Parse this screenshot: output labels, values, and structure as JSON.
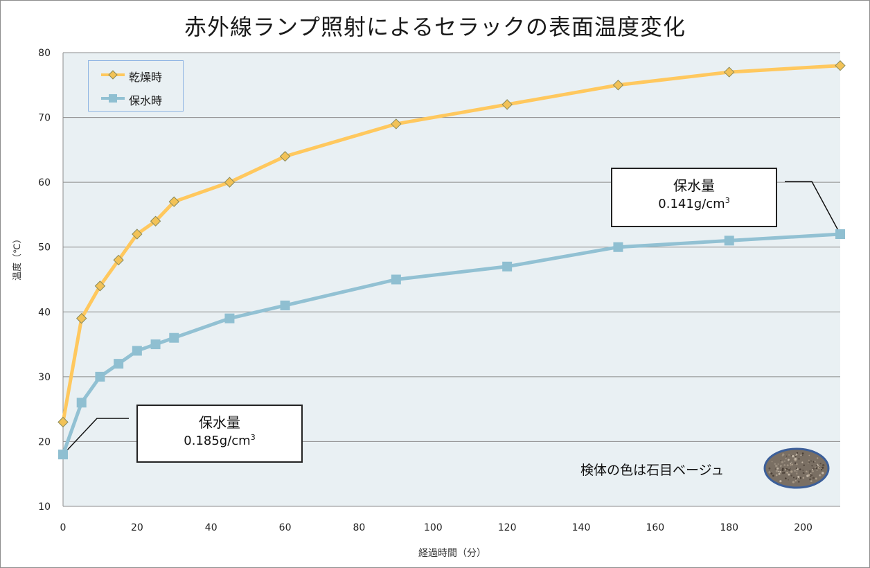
{
  "chart_data": {
    "type": "line",
    "title": "赤外線ランプ照射によるセラックの表面温度変化",
    "xlabel": "経過時間（分）",
    "ylabel": "温度（℃）",
    "xlim": [
      0,
      210
    ],
    "ylim": [
      10,
      80
    ],
    "x_ticks": [
      0,
      20,
      40,
      60,
      80,
      100,
      120,
      140,
      160,
      180,
      200
    ],
    "y_ticks": [
      10,
      20,
      30,
      40,
      50,
      60,
      70,
      80
    ],
    "grid": "horizontal",
    "legend_position": "top-left",
    "series": [
      {
        "name": "乾燥時",
        "color": "#ffc85e",
        "marker": "diamond",
        "marker_fill": "#f2c257",
        "x": [
          0,
          5,
          10,
          15,
          20,
          25,
          30,
          45,
          60,
          90,
          120,
          150,
          180,
          210
        ],
        "values": [
          23,
          39,
          44,
          48,
          52,
          54,
          57,
          60,
          64,
          69,
          72,
          75,
          77,
          78
        ]
      },
      {
        "name": "保水時",
        "color": "#92c1d3",
        "marker": "square",
        "marker_fill": "#8fbfd1",
        "x": [
          0,
          5,
          10,
          15,
          20,
          25,
          30,
          45,
          60,
          90,
          120,
          150,
          180,
          210
        ],
        "values": [
          18,
          26,
          30,
          32,
          34,
          35,
          36,
          39,
          41,
          45,
          47,
          50,
          51,
          52
        ]
      }
    ],
    "annotations": [
      {
        "label": "保水量",
        "value": "0.185g/cm",
        "sup": "3",
        "points_to": {
          "series": "保水時",
          "x": 0,
          "y": 18
        }
      },
      {
        "label": "保水量",
        "value": "0.141g/cm",
        "sup": "3",
        "points_to": {
          "series": "保水時",
          "x": 210,
          "y": 52
        }
      },
      {
        "label": "検体の色は石目ベージュ"
      }
    ],
    "plot_background": "#e9f0f3"
  }
}
